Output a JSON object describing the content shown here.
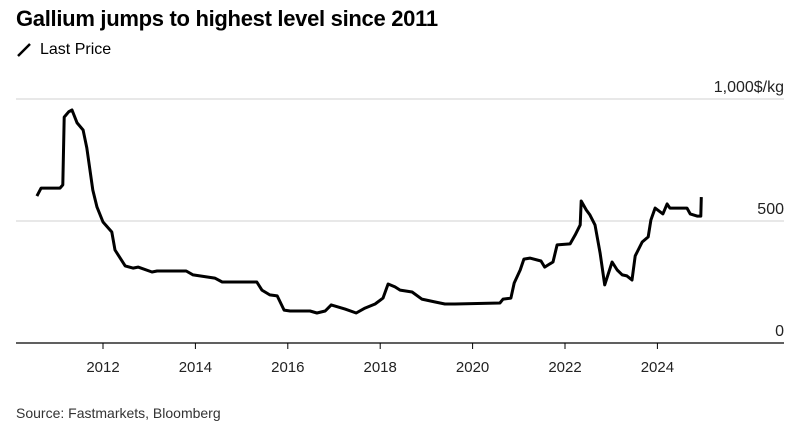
{
  "title": "Gallium jumps to highest level since 2011",
  "source": "Source: Fastmarkets, Bloomberg",
  "chart_data": {
    "type": "line",
    "title": "Gallium jumps to highest level since 2011",
    "ylabel": "",
    "y_unit": "$/kg",
    "ylim": [
      0,
      1000
    ],
    "yticks": [
      0,
      500,
      1000
    ],
    "ytick_labels": [
      "0",
      "500",
      "1,000$/kg"
    ],
    "xlim": [
      2010.2,
      2027.4
    ],
    "xticks": [
      2012,
      2014,
      2016,
      2018,
      2020,
      2022,
      2024
    ],
    "xtick_labels": [
      "2012",
      "2014",
      "2016",
      "2018",
      "2020",
      "2022",
      "2024"
    ],
    "grid": true,
    "y_axis_side": "right",
    "legend_position": "top-left",
    "series": [
      {
        "name": "Last Price",
        "color": "#000000",
        "x": [
          2010.57,
          2010.66,
          2011.07,
          2011.13,
          2011.16,
          2011.26,
          2011.33,
          2011.44,
          2011.57,
          2011.65,
          2011.78,
          2011.87,
          2012.0,
          2012.19,
          2012.26,
          2012.48,
          2012.65,
          2012.76,
          2013.06,
          2013.17,
          2013.8,
          2013.95,
          2014.42,
          2014.58,
          2015.33,
          2015.44,
          2015.61,
          2015.77,
          2015.92,
          2016.05,
          2016.48,
          2016.63,
          2016.81,
          2016.94,
          2017.24,
          2017.48,
          2017.67,
          2017.89,
          2018.06,
          2018.17,
          2018.32,
          2018.43,
          2018.69,
          2018.9,
          2019.19,
          2019.4,
          2019.62,
          2020.59,
          2020.66,
          2020.83,
          2020.9,
          2021.03,
          2021.11,
          2021.24,
          2021.48,
          2021.56,
          2021.67,
          2021.74,
          2021.83,
          2022.11,
          2022.22,
          2022.33,
          2022.35,
          2022.46,
          2022.54,
          2022.65,
          2022.76,
          2022.86,
          2023.02,
          2023.13,
          2023.24,
          2023.34,
          2023.45,
          2023.52,
          2023.67,
          2023.8,
          2023.86,
          2023.95,
          2024.12,
          2024.21,
          2024.27,
          2024.64,
          2024.71,
          2024.86,
          2024.94,
          2024.95
        ],
        "y": [
          602,
          635,
          635,
          648,
          926,
          948,
          955,
          902,
          873,
          800,
          627,
          557,
          496,
          455,
          381,
          316,
          307,
          311,
          291,
          295,
          295,
          279,
          266,
          250,
          250,
          217,
          197,
          193,
          135,
          131,
          131,
          123,
          131,
          156,
          139,
          123,
          143,
          160,
          184,
          242,
          230,
          217,
          209,
          180,
          168,
          160,
          160,
          164,
          180,
          184,
          246,
          299,
          344,
          348,
          336,
          311,
          324,
          332,
          402,
          406,
          443,
          484,
          582,
          545,
          525,
          484,
          369,
          238,
          332,
          299,
          279,
          275,
          258,
          357,
          414,
          435,
          504,
          553,
          529,
          570,
          553,
          553,
          529,
          520,
          520,
          598
        ]
      }
    ]
  }
}
